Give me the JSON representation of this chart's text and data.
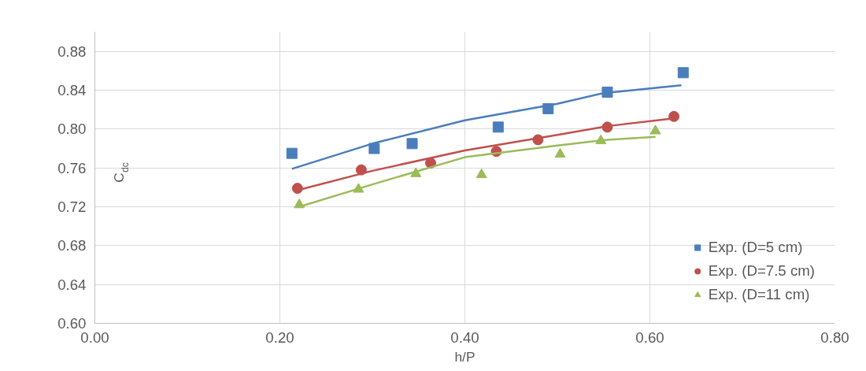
{
  "chart_data": {
    "type": "scatter",
    "xlabel": "h/P",
    "ylabel": "C$_{dc}$",
    "xlim": [
      0,
      0.8
    ],
    "xticks": [
      {
        "value": 0,
        "label": "0.00"
      },
      {
        "value": 0.2,
        "label": "0.20"
      },
      {
        "value": 0.4,
        "label": "0.40"
      },
      {
        "value": 0.6,
        "label": "0.60"
      },
      {
        "value": 0.8,
        "label": "0.80"
      }
    ],
    "ylim": [
      0.6,
      0.9
    ],
    "yticks": [
      {
        "value": 0.6,
        "label": "0.60"
      },
      {
        "value": 0.64,
        "label": "0.64"
      },
      {
        "value": 0.68,
        "label": "0.68"
      },
      {
        "value": 0.72,
        "label": "0.72"
      },
      {
        "value": 0.76,
        "label": "0.76"
      },
      {
        "value": 0.8,
        "label": "0.80"
      },
      {
        "value": 0.84,
        "label": "0.84"
      },
      {
        "value": 0.88,
        "label": "0.88"
      }
    ],
    "grid": true,
    "legend": "bottom right",
    "series": [
      {
        "name": "Exp. (D=5 cm)",
        "type": "scatter",
        "marker": "square",
        "color": "#4a7ebb",
        "x": [
          0.213,
          0.302,
          0.343,
          0.436,
          0.49,
          0.554,
          0.636
        ],
        "values": [
          0.775,
          0.78,
          0.785,
          0.802,
          0.821,
          0.838,
          0.858
        ]
      },
      {
        "name": "Exp. (D=7.5 cm)",
        "type": "scatter",
        "marker": "circle",
        "color": "#c0504d",
        "x": [
          0.219,
          0.288,
          0.363,
          0.434,
          0.479,
          0.554,
          0.626
        ],
        "values": [
          0.739,
          0.758,
          0.765,
          0.777,
          0.789,
          0.802,
          0.813
        ]
      },
      {
        "name": "Exp. (D=11 cm)",
        "type": "scatter",
        "marker": "triangle",
        "color": "#9bbb59",
        "x": [
          0.221,
          0.285,
          0.347,
          0.418,
          0.503,
          0.547,
          0.606
        ],
        "values": [
          0.722,
          0.738,
          0.754,
          0.753,
          0.774,
          0.788,
          0.798
        ]
      },
      {
        "type": "line",
        "color": "#4a7ebb",
        "x": [
          0.213,
          0.3,
          0.4,
          0.5,
          0.55,
          0.634
        ],
        "values": [
          0.759,
          0.785,
          0.809,
          0.826,
          0.837,
          0.845
        ]
      },
      {
        "type": "line",
        "color": "#c0504d",
        "x": [
          0.219,
          0.3,
          0.4,
          0.5,
          0.554,
          0.626
        ],
        "values": [
          0.737,
          0.757,
          0.778,
          0.794,
          0.803,
          0.811
        ]
      },
      {
        "type": "line",
        "color": "#9bbb59",
        "x": [
          0.221,
          0.3,
          0.4,
          0.5,
          0.554,
          0.606
        ],
        "values": [
          0.72,
          0.743,
          0.771,
          0.783,
          0.789,
          0.792
        ]
      }
    ]
  }
}
